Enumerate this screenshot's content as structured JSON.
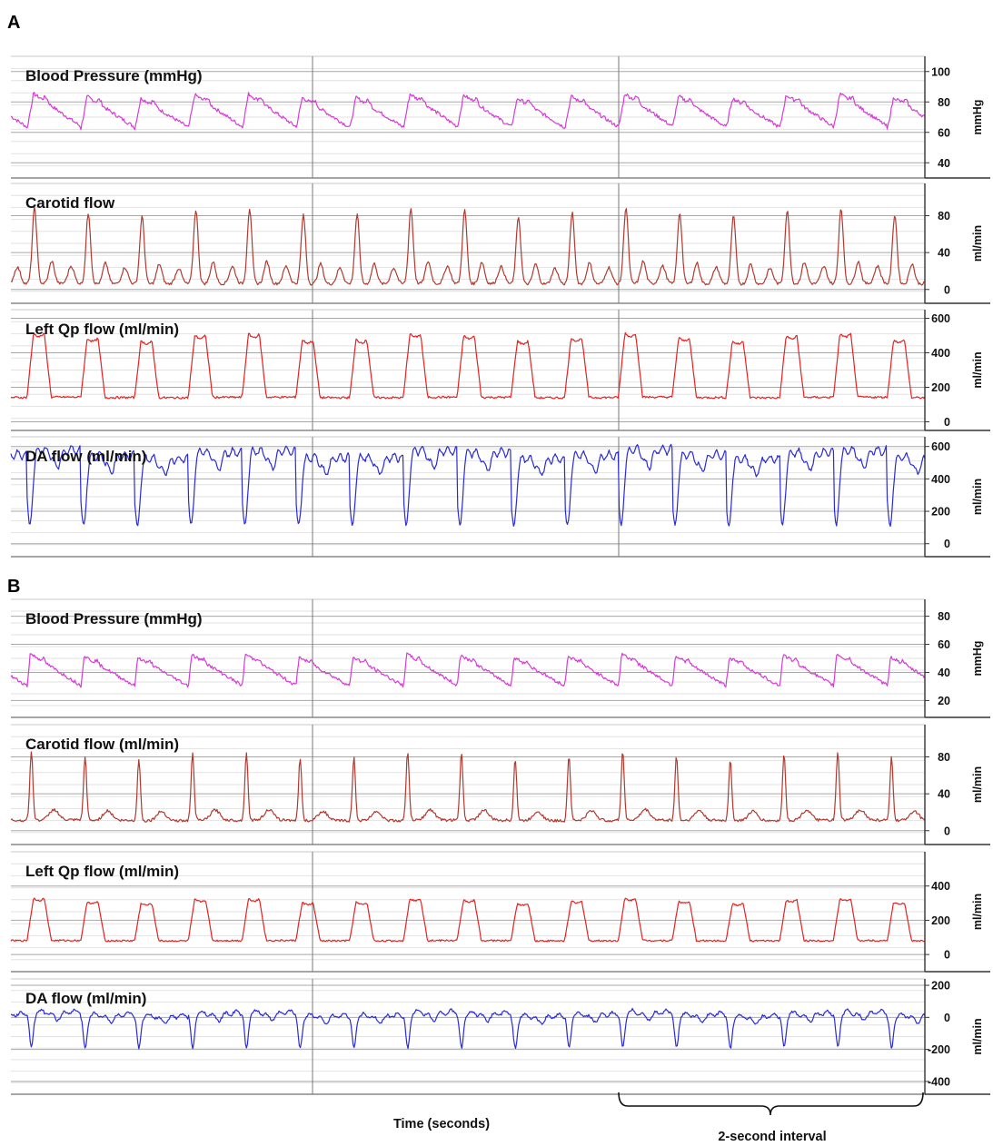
{
  "panels": [
    {
      "letter": "A",
      "strips": [
        {
          "title": "Blood Pressure (mmHg)",
          "unit": "mmHg",
          "ticks": [
            40,
            60,
            80,
            100
          ],
          "range": [
            30,
            110
          ],
          "color": "#d63bd6",
          "shape": "bp",
          "beats": 17,
          "base": 58,
          "peak": 84,
          "noise": 1.2
        },
        {
          "title": "Carotid flow",
          "unit": "ml/min",
          "ticks": [
            0,
            40,
            80
          ],
          "range": [
            -15,
            115
          ],
          "color": "#b03a30",
          "shape": "carotid",
          "beats": 17,
          "base": 2,
          "peak": 84,
          "noise": 1.5
        },
        {
          "title": "Left Qp flow (ml/min)",
          "unit": "ml/min",
          "ticks": [
            0,
            200,
            400,
            600
          ],
          "range": [
            -50,
            650
          ],
          "color": "#e52222",
          "shape": "qp",
          "beats": 17,
          "base": 110,
          "peak": 500,
          "noise": 6
        },
        {
          "title": "DA flow (ml/min)",
          "unit": "ml/min",
          "ticks": [
            0,
            200,
            400,
            600
          ],
          "range": [
            -80,
            660
          ],
          "color": "#2b2bd6",
          "shape": "da",
          "beats": 17,
          "base": 80,
          "peak": 560,
          "noise": 10
        }
      ]
    },
    {
      "letter": "B",
      "strips": [
        {
          "title": "Blood Pressure (mmHg)",
          "unit": "mmHg",
          "ticks": [
            20,
            40,
            60,
            80
          ],
          "range": [
            8,
            92
          ],
          "color": "#d63bd6",
          "shape": "bp2",
          "beats": 17,
          "base": 28,
          "peak": 52,
          "noise": 1.2
        },
        {
          "title": "Carotid flow (ml/min)",
          "unit": "ml/min",
          "ticks": [
            0,
            40,
            80
          ],
          "range": [
            -15,
            115
          ],
          "color": "#b03a30",
          "shape": "carotid2",
          "beats": 17,
          "base": 5,
          "peak": 82,
          "noise": 1.5
        },
        {
          "title": "Left Qp flow (ml/min)",
          "unit": "ml/min",
          "ticks": [
            0,
            200,
            400
          ],
          "range": [
            -100,
            600
          ],
          "color": "#e52222",
          "shape": "qp",
          "beats": 17,
          "base": 60,
          "peak": 320,
          "noise": 5
        },
        {
          "title": "DA flow (ml/min)",
          "unit": "ml/min",
          "ticks": [
            -400,
            -200,
            0,
            200
          ],
          "range": [
            -480,
            240
          ],
          "color": "#2b2bd6",
          "shape": "da2",
          "beats": 17,
          "base": -200,
          "peak": 60,
          "noise": 8
        }
      ]
    }
  ],
  "x_axis_label": "Time (seconds)",
  "interval_label": "2-second interval",
  "chart_data": [
    {
      "type": "line",
      "panel": "A",
      "xlabel": "Time (seconds)",
      "series": [
        {
          "name": "Blood Pressure (mmHg)",
          "unit": "mmHg",
          "ylim": [
            30,
            110
          ],
          "approx_range": [
            58,
            84
          ],
          "beats": 17
        },
        {
          "name": "Carotid flow",
          "unit": "ml/min",
          "ylim": [
            -15,
            115
          ],
          "approx_range": [
            2,
            84
          ],
          "beats": 17
        },
        {
          "name": "Left Qp flow (ml/min)",
          "unit": "ml/min",
          "ylim": [
            -50,
            650
          ],
          "approx_range": [
            110,
            500
          ],
          "beats": 17
        },
        {
          "name": "DA flow (ml/min)",
          "unit": "ml/min",
          "ylim": [
            -80,
            660
          ],
          "approx_range": [
            80,
            560
          ],
          "beats": 17
        }
      ]
    },
    {
      "type": "line",
      "panel": "B",
      "xlabel": "Time (seconds)",
      "series": [
        {
          "name": "Blood Pressure (mmHg)",
          "unit": "mmHg",
          "ylim": [
            8,
            92
          ],
          "approx_range": [
            28,
            52
          ],
          "beats": 17
        },
        {
          "name": "Carotid flow (ml/min)",
          "unit": "ml/min",
          "ylim": [
            -15,
            115
          ],
          "approx_range": [
            5,
            82
          ],
          "beats": 17
        },
        {
          "name": "Left Qp flow (ml/min)",
          "unit": "ml/min",
          "ylim": [
            -100,
            600
          ],
          "approx_range": [
            60,
            320
          ],
          "beats": 17
        },
        {
          "name": "DA flow (ml/min)",
          "unit": "ml/min",
          "ylim": [
            -480,
            240
          ],
          "approx_range": [
            -200,
            60
          ],
          "beats": 17
        }
      ]
    }
  ]
}
